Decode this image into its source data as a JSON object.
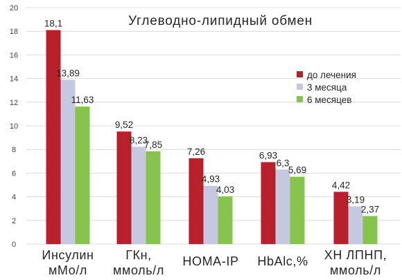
{
  "chart_data": {
    "type": "bar",
    "title": "Углеводно-липидный обмен",
    "categories": [
      [
        "Инсулин",
        "мМо/л"
      ],
      [
        "ГКн,",
        "ммоль/л"
      ],
      [
        "HOMA-IP"
      ],
      [
        "HbAlc,%"
      ],
      [
        "ХН ЛПНП,",
        "ммоль/л"
      ]
    ],
    "series": [
      {
        "name": "до лечения",
        "color": "#b8202b",
        "values": [
          18.1,
          9.52,
          7.26,
          6.93,
          4.42
        ],
        "labels": [
          "18,1",
          "9,52",
          "7,26",
          "6,93",
          "4,42"
        ]
      },
      {
        "name": "3 месяца",
        "color": "#c6c8e0",
        "values": [
          13.89,
          8.23,
          4.93,
          6.3,
          3.19
        ],
        "labels": [
          "13,89",
          "8,23",
          "4,93",
          "6,3",
          "3,19"
        ]
      },
      {
        "name": "6 месяцев",
        "color": "#86c44e",
        "values": [
          11.63,
          7.85,
          4.03,
          5.69,
          2.37
        ],
        "labels": [
          "11,63",
          "7,85",
          "4,03",
          "5,69",
          "2,37"
        ]
      }
    ],
    "ylim": [
      0,
      20
    ],
    "yticks": [
      0,
      2,
      4,
      6,
      8,
      10,
      12,
      14,
      16,
      18,
      20
    ],
    "grid": true,
    "gridColor": "#d9d9d9",
    "legend": "right"
  }
}
